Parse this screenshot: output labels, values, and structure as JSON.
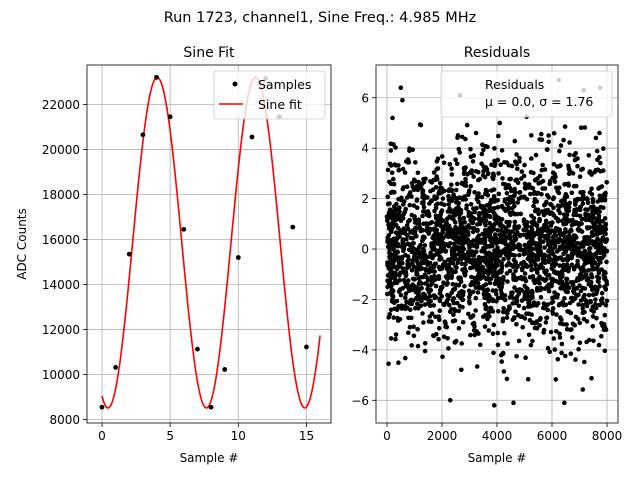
{
  "figure": {
    "suptitle": "Run 1723, channel1, Sine Freq.: 4.985 MHz"
  },
  "chart_data": [
    {
      "type": "line",
      "title": "Sine Fit",
      "xlabel": "Sample #",
      "ylabel": "ADC Counts",
      "xlim": [
        -1.1,
        16.8
      ],
      "ylim": [
        7850,
        23750
      ],
      "xticks": [
        0,
        5,
        10,
        15
      ],
      "xtick_labels": [
        "0",
        "5",
        "10",
        "15"
      ],
      "yticks": [
        8000,
        10000,
        12000,
        14000,
        16000,
        18000,
        20000,
        22000
      ],
      "ytick_labels": [
        "8000",
        "10000",
        "12000",
        "14000",
        "16000",
        "18000",
        "20000",
        "22000"
      ],
      "grid": true,
      "legend": {
        "placement": "top-right",
        "entries": [
          "Samples",
          "Sine fit"
        ]
      },
      "fit": {
        "amplitude": 7340,
        "offset": 15860,
        "period_samples": 7.22,
        "peak_at": 4.05
      },
      "series": [
        {
          "name": "Samples",
          "style": "scatter",
          "color": "#000000",
          "x": [
            0,
            1,
            2,
            3,
            4,
            5,
            6,
            7,
            8,
            9,
            10,
            11,
            12,
            13,
            14,
            15
          ],
          "y": [
            8550,
            10320,
            15350,
            20650,
            23200,
            21450,
            16450,
            11130,
            8550,
            10230,
            15200,
            20550,
            23150,
            21450,
            16550,
            11230
          ]
        },
        {
          "name": "Sine fit",
          "style": "line",
          "color": "#ff0000",
          "x_range": [
            0,
            16
          ]
        }
      ]
    },
    {
      "type": "scatter",
      "title": "Residuals",
      "xlabel": "Sample #",
      "ylabel": "",
      "xlim": [
        -400,
        8400
      ],
      "ylim": [
        -6.9,
        7.3
      ],
      "xticks": [
        0,
        2000,
        4000,
        6000,
        8000
      ],
      "xtick_labels": [
        "0",
        "2000",
        "4000",
        "6000",
        "8000"
      ],
      "yticks": [
        -6,
        -4,
        -2,
        0,
        2,
        4,
        6
      ],
      "ytick_labels": [
        "−6",
        "−4",
        "−2",
        "0",
        "2",
        "4",
        "6"
      ],
      "grid": true,
      "legend": {
        "placement": "top-right",
        "entries": [
          "Residuals",
          "μ = 0.0, σ = 1.76"
        ]
      },
      "series": [
        {
          "name": "Residuals",
          "color": "#000000",
          "n_points": 8000,
          "mean": 0.0,
          "sigma": 1.76,
          "x_range": [
            0,
            8000
          ],
          "outliers": [
            {
              "x": 500,
              "y": 6.4
            },
            {
              "x": 560,
              "y": 5.9
            },
            {
              "x": 2650,
              "y": 6.1
            },
            {
              "x": 6250,
              "y": 6.7
            },
            {
              "x": 7750,
              "y": 6.4
            },
            {
              "x": 7150,
              "y": 6.3
            },
            {
              "x": 3900,
              "y": -6.2
            },
            {
              "x": 4600,
              "y": -6.1
            },
            {
              "x": 6450,
              "y": -6.1
            },
            {
              "x": 2300,
              "y": -6.0
            },
            {
              "x": 4100,
              "y": 5.0
            },
            {
              "x": 200,
              "y": 5.2
            }
          ]
        }
      ]
    }
  ]
}
